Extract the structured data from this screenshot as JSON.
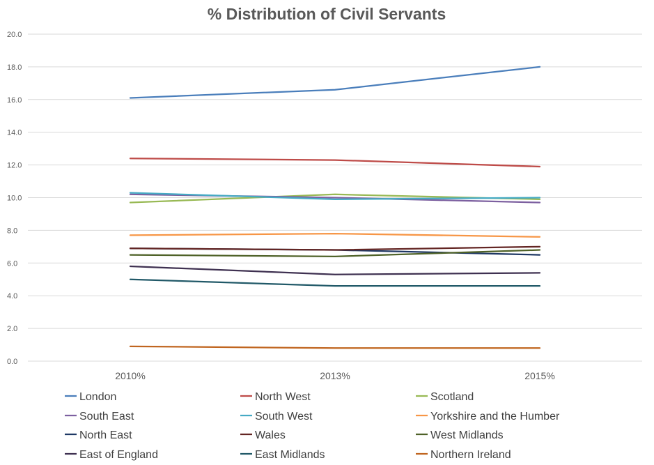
{
  "chart_data": {
    "type": "line",
    "title": "% Distribution of Civil Servants",
    "xlabel": "",
    "ylabel": "",
    "categories": [
      "2010%",
      "2013%",
      "2015%"
    ],
    "ylim": [
      0,
      20
    ],
    "yticks": [
      "0.0",
      "2.0",
      "4.0",
      "6.0",
      "8.0",
      "10.0",
      "12.0",
      "14.0",
      "16.0",
      "18.0",
      "20.0"
    ],
    "grid": true,
    "legend_position": "bottom",
    "series": [
      {
        "name": "London",
        "color": "#4a7ebb",
        "values": [
          16.1,
          16.6,
          18.0
        ]
      },
      {
        "name": "North West",
        "color": "#be4b48",
        "values": [
          12.4,
          12.3,
          11.9
        ]
      },
      {
        "name": "Scotland",
        "color": "#98b954",
        "values": [
          9.7,
          10.2,
          9.9
        ]
      },
      {
        "name": "South East",
        "color": "#7d60a0",
        "values": [
          10.2,
          10.0,
          9.7
        ]
      },
      {
        "name": "South West",
        "color": "#46aac4",
        "values": [
          10.3,
          9.9,
          10.0
        ]
      },
      {
        "name": "Yorkshire and the Humber",
        "color": "#f79646",
        "values": [
          7.7,
          7.8,
          7.6
        ]
      },
      {
        "name": "North East",
        "color": "#1f3864",
        "values": [
          6.9,
          6.8,
          6.5
        ]
      },
      {
        "name": "Wales",
        "color": "#632523",
        "values": [
          6.9,
          6.8,
          7.0
        ]
      },
      {
        "name": "West Midlands",
        "color": "#4f6228",
        "values": [
          6.5,
          6.4,
          6.8
        ]
      },
      {
        "name": "East of England",
        "color": "#3f3151",
        "values": [
          5.8,
          5.3,
          5.4
        ]
      },
      {
        "name": "East Midlands",
        "color": "#215968",
        "values": [
          5.0,
          4.6,
          4.6
        ]
      },
      {
        "name": "Northern Ireland",
        "color": "#c0651f",
        "values": [
          0.9,
          0.8,
          0.8
        ]
      }
    ]
  }
}
